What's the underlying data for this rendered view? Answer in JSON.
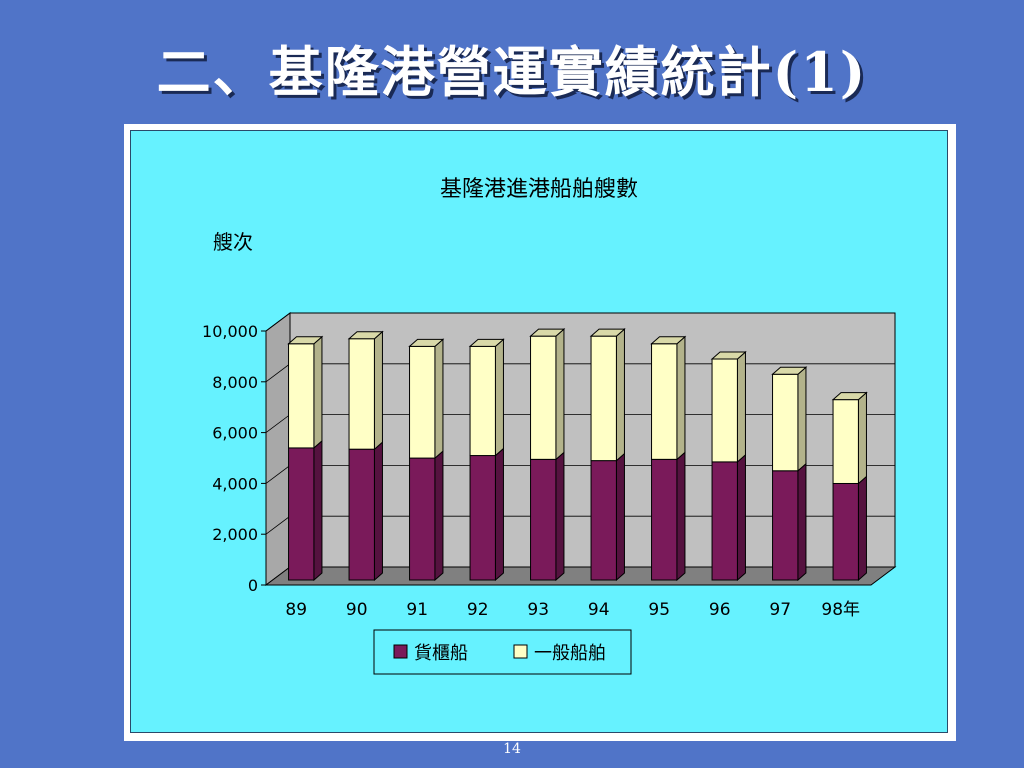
{
  "slide": {
    "title": "二、基隆港營運實績統計(1)",
    "page_number": "14"
  },
  "colors": {
    "background": "#5074c8",
    "chart_area": "#66f2ff",
    "plot_wall": "#c0c0c0",
    "cargo": "#7a1a5a",
    "general": "#ffffc6"
  },
  "chart_data": {
    "type": "bar",
    "stacked": true,
    "title": "基隆港進港船舶艘數",
    "ylabel": "艘次",
    "xlabel": "",
    "categories": [
      "89",
      "90",
      "91",
      "92",
      "93",
      "94",
      "95",
      "96",
      "97",
      "98年"
    ],
    "ylim": [
      0,
      10000
    ],
    "yticks": [
      "0",
      "2,000",
      "4,000",
      "6,000",
      "8,000",
      "10,000"
    ],
    "yticks_values": [
      0,
      2000,
      4000,
      6000,
      8000,
      10000
    ],
    "grid": true,
    "legend_position": "bottom",
    "series": [
      {
        "name": "貨櫃船",
        "color": "#7a1a5a",
        "values": [
          5200,
          5150,
          4800,
          4900,
          4750,
          4700,
          4750,
          4650,
          4300,
          3800
        ]
      },
      {
        "name": "一般船舶",
        "color": "#ffffc6",
        "values": [
          4100,
          4350,
          4400,
          4300,
          4850,
          4900,
          4550,
          4050,
          3800,
          3300
        ]
      }
    ]
  }
}
